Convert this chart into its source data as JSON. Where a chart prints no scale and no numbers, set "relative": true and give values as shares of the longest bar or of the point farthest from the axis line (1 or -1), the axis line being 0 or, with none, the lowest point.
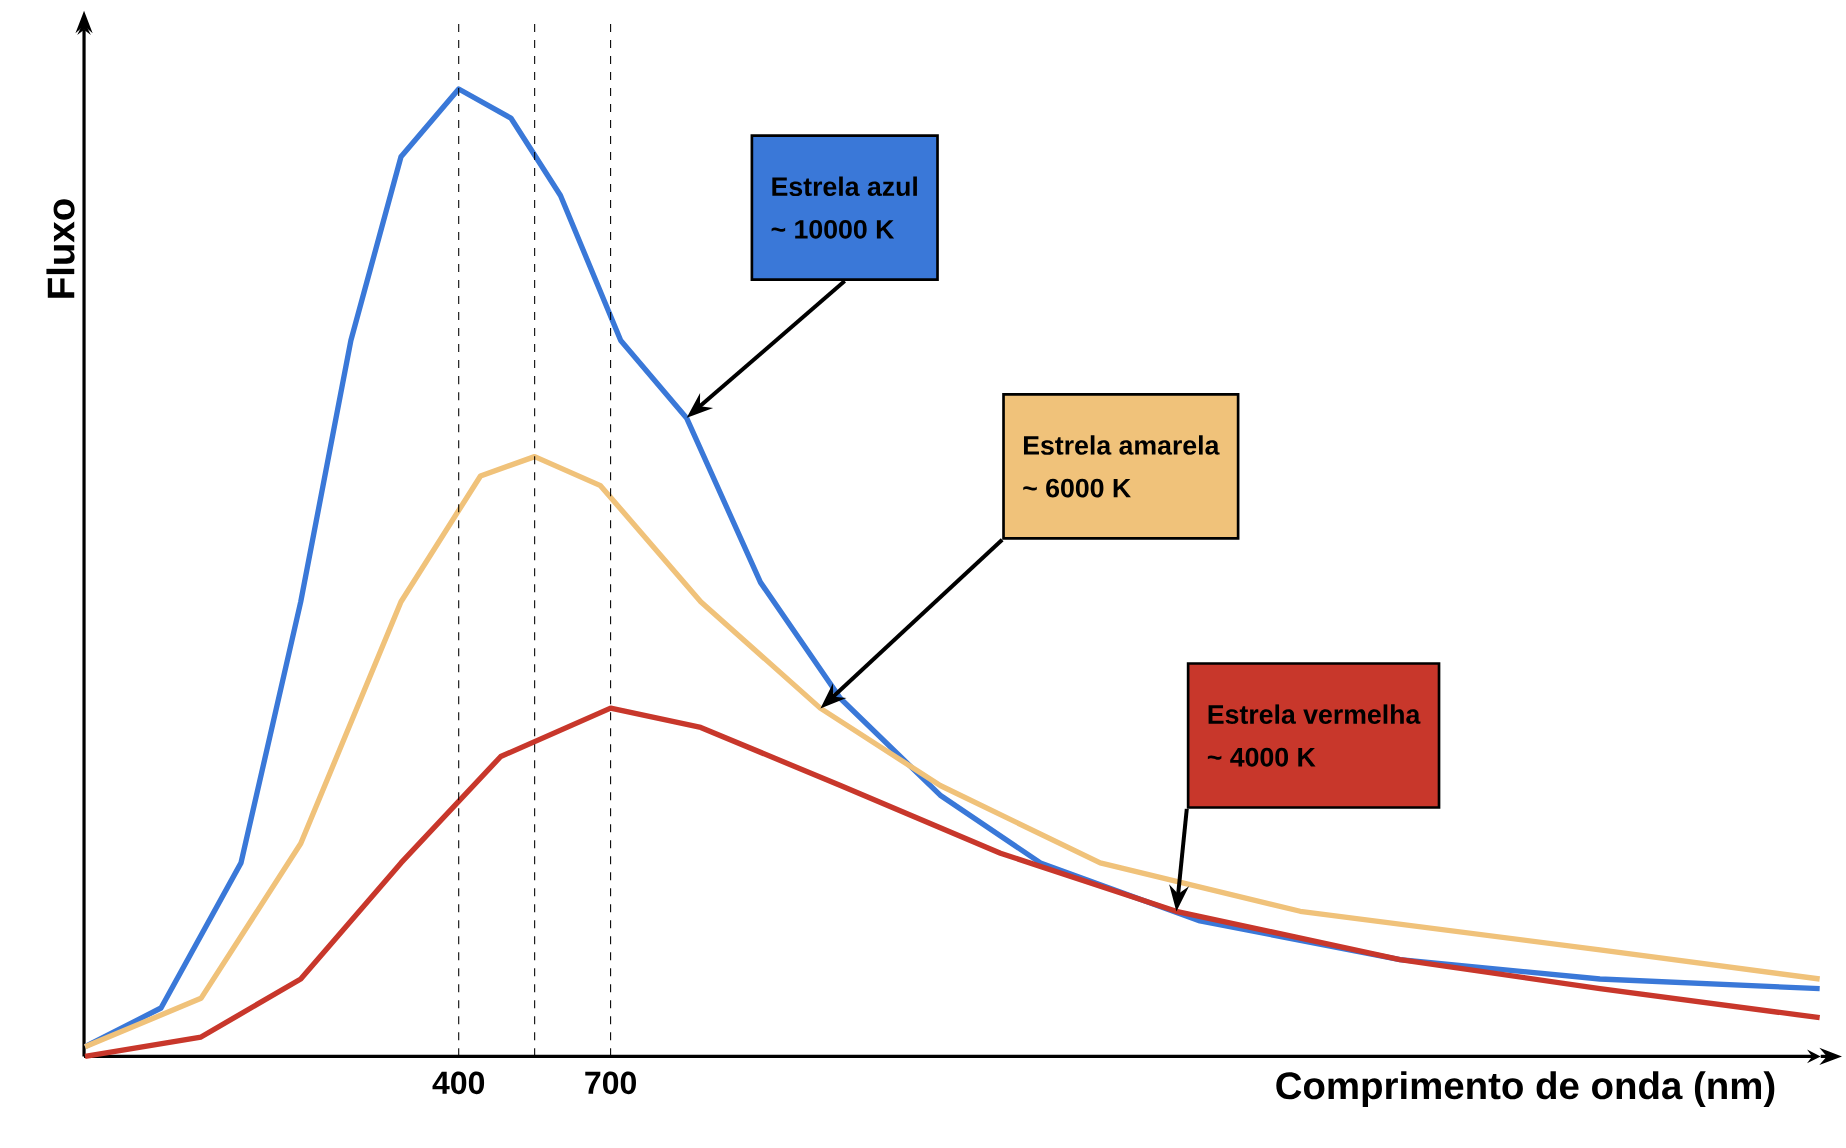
{
  "chart_data": {
    "type": "line",
    "relative": true,
    "xlabel": "Comprimento de onda (nm)",
    "ylabel": "Fluxo",
    "xlim": [
      -340,
      3090
    ],
    "xticks": [
      400,
      700
    ],
    "series": [
      {
        "color": "#3a78d8",
        "x": [
          -338,
          -188,
          -30,
          88,
          187,
          286,
          400,
          503,
          601,
          720,
          850,
          996,
          1154,
          1351,
          1549,
          1864,
          2259,
          2654,
          3088
        ],
        "values": [
          0.01,
          0.05,
          0.2,
          0.47,
          0.74,
          0.93,
          1,
          0.97,
          0.89,
          0.74,
          0.66,
          0.49,
          0.37,
          0.27,
          0.2,
          0.14,
          0.1,
          0.08,
          0.07
        ]
      },
      {
        "color": "#f0c27a",
        "x": [
          -338,
          -109,
          88,
          286,
          443,
          550,
          680,
          878,
          1114,
          1351,
          1667,
          2062,
          2654,
          3088
        ],
        "values": [
          0.01,
          0.06,
          0.22,
          0.47,
          0.6,
          0.62,
          0.59,
          0.47,
          0.36,
          0.28,
          0.2,
          0.15,
          0.11,
          0.08
        ]
      },
      {
        "color": "#c8372b",
        "x": [
          -338,
          -109,
          88,
          286,
          483,
          700,
          878,
          1154,
          1470,
          1817,
          2259,
          2654,
          3088
        ],
        "values": [
          0.0,
          0.02,
          0.08,
          0.2,
          0.31,
          0.36,
          0.34,
          0.28,
          0.21,
          0.15,
          0.1,
          0.07,
          0.04
        ]
      }
    ],
    "annotations": [
      "Estrela azul",
      "~ 10000 K",
      "Estrela amarela",
      "~ 6000 K",
      "Estrela vermelha",
      "~ 4000 K"
    ],
    "ref_lines": [
      {
        "axis": "x",
        "value": 400
      },
      {
        "axis": "x",
        "value": 550
      },
      {
        "axis": "x",
        "value": 700
      }
    ]
  }
}
